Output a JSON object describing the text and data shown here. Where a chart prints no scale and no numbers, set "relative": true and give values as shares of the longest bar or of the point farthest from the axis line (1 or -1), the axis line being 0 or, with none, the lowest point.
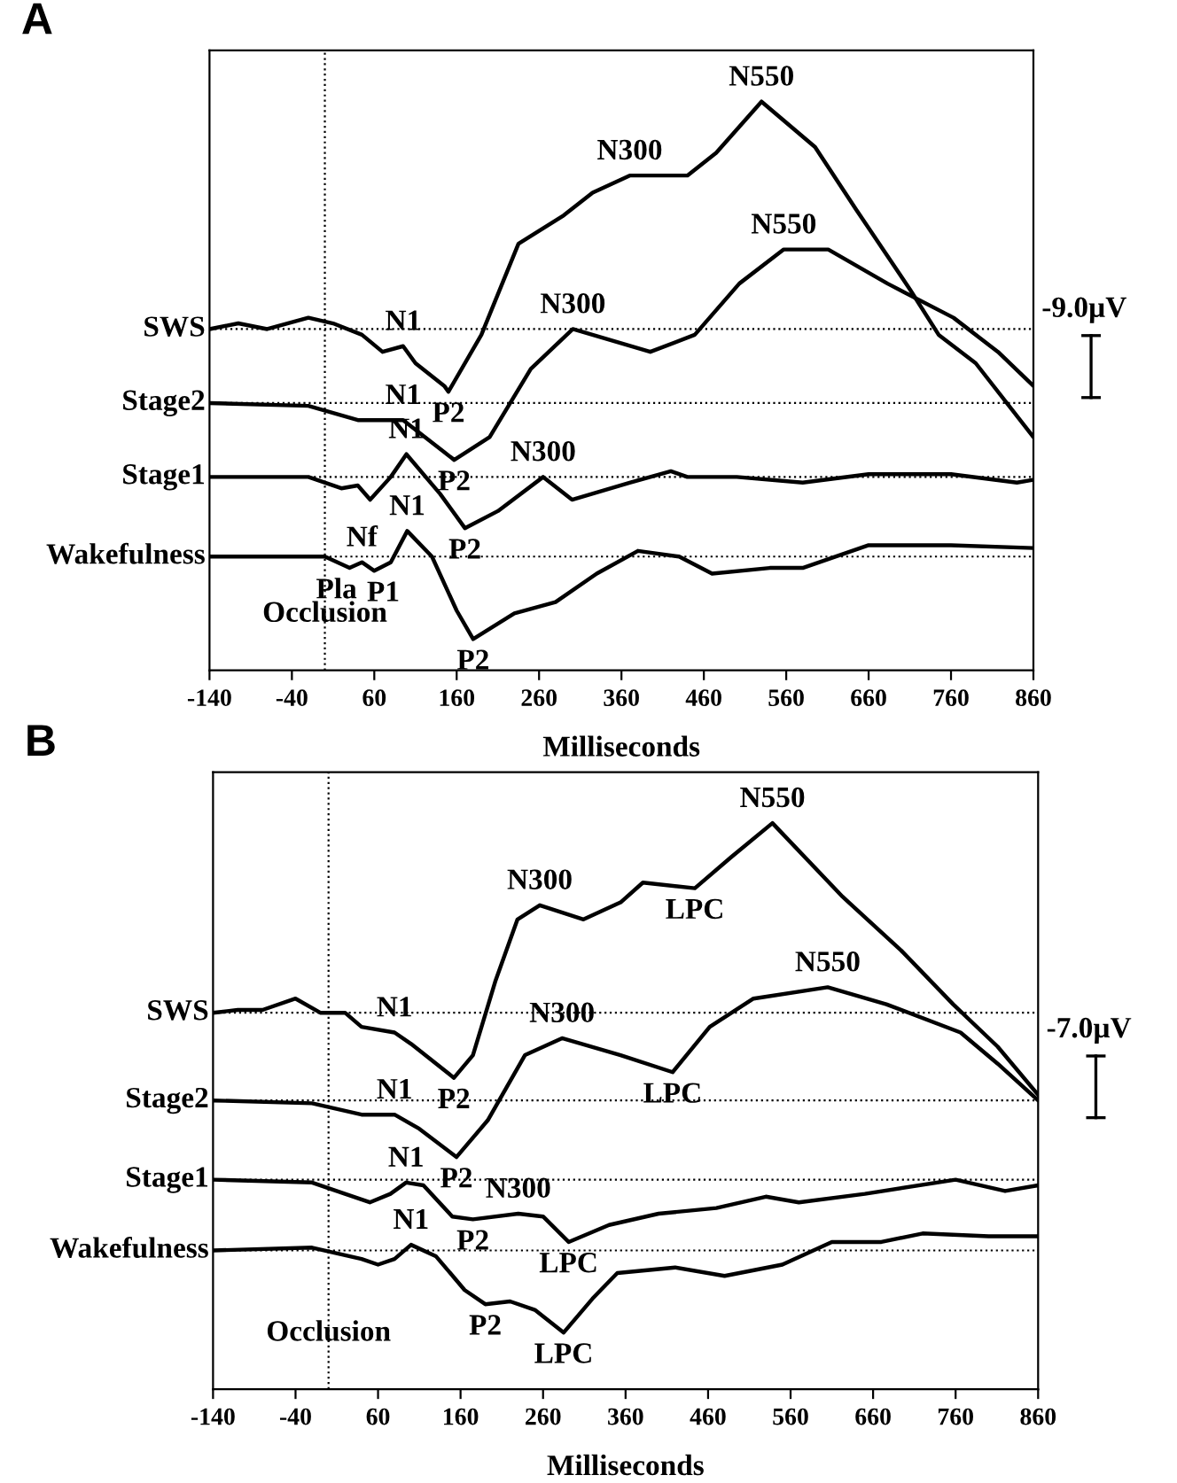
{
  "chart_data": [
    {
      "type": "line",
      "title": "A",
      "xlabel": "Milliseconds",
      "relative": true,
      "xlim": [
        -140,
        860
      ],
      "xticks": [
        -140,
        -40,
        60,
        160,
        260,
        360,
        460,
        560,
        660,
        760,
        860
      ],
      "grid": false,
      "legend": false,
      "line_style": "solid",
      "marker": "none",
      "series": [
        {
          "name": "SWS",
          "color": "#000000",
          "x": [
            -140,
            -105,
            -70,
            -20,
            10,
            45,
            70,
            95,
            110,
            145,
            150,
            190,
            235,
            290,
            325,
            370,
            440,
            475,
            530,
            595,
            645,
            710,
            745,
            790,
            860
          ],
          "values": [
            0.6,
            0.61,
            0.6,
            0.62,
            0.61,
            0.59,
            0.56,
            0.57,
            0.54,
            0.5,
            0.49,
            0.59,
            0.75,
            0.8,
            0.84,
            0.87,
            0.87,
            0.91,
            1.0,
            0.92,
            0.81,
            0.67,
            0.59,
            0.54,
            0.41
          ]
        },
        {
          "name": "Stage2",
          "color": "#000000",
          "x": [
            -140,
            -20,
            40,
            95,
            157,
            200,
            250,
            301,
            395,
            449,
            503,
            557,
            611,
            683,
            763,
            817,
            860
          ],
          "values": [
            0.47,
            0.465,
            0.44,
            0.44,
            0.37,
            0.41,
            0.53,
            0.6,
            0.56,
            0.59,
            0.68,
            0.74,
            0.74,
            0.68,
            0.62,
            0.56,
            0.5
          ]
        },
        {
          "name": "Stage1",
          "color": "#000000",
          "x": [
            -140,
            -20,
            20,
            40,
            55,
            80,
            99,
            140,
            170,
            210,
            265,
            300,
            370,
            420,
            440,
            500,
            580,
            660,
            760,
            840,
            860
          ],
          "values": [
            0.34,
            0.34,
            0.32,
            0.325,
            0.3,
            0.34,
            0.38,
            0.31,
            0.25,
            0.28,
            0.34,
            0.3,
            0.33,
            0.35,
            0.34,
            0.34,
            0.33,
            0.345,
            0.345,
            0.33,
            0.335
          ]
        },
        {
          "name": "Wakefulness",
          "color": "#000000",
          "x": [
            -140,
            0,
            30,
            45,
            60,
            80,
            100,
            130,
            160,
            180,
            230,
            280,
            330,
            380,
            430,
            470,
            540,
            580,
            660,
            760,
            860
          ],
          "values": [
            0.2,
            0.2,
            0.18,
            0.19,
            0.175,
            0.19,
            0.245,
            0.2,
            0.105,
            0.055,
            0.1,
            0.12,
            0.17,
            0.21,
            0.2,
            0.17,
            0.18,
            0.18,
            0.22,
            0.22,
            0.215
          ]
        }
      ],
      "ref_lines": [
        {
          "axis": "y",
          "value": 0.6,
          "line_style": "dotted"
        },
        {
          "axis": "y",
          "value": 0.47,
          "line_style": "dotted"
        },
        {
          "axis": "y",
          "value": 0.34,
          "line_style": "dotted"
        },
        {
          "axis": "y",
          "value": 0.2,
          "line_style": "dotted"
        },
        {
          "axis": "x",
          "value": 0,
          "line_style": "dotted"
        }
      ],
      "annotations": [
        {
          "text": "N550",
          "x": 530,
          "y": 1.0
        },
        {
          "text": "N300",
          "x": 370,
          "y": 0.87
        },
        {
          "text": "N550",
          "x": 557,
          "y": 0.74
        },
        {
          "text": "N300",
          "x": 301,
          "y": 0.6
        },
        {
          "text": "N1",
          "x": 95,
          "y": 0.57
        },
        {
          "text": "N1",
          "x": 95,
          "y": 0.44
        },
        {
          "text": "P2",
          "x": 150,
          "y": 0.49
        },
        {
          "text": "N1",
          "x": 99,
          "y": 0.38
        },
        {
          "text": "P2",
          "x": 157,
          "y": 0.37
        },
        {
          "text": "N300",
          "x": 265,
          "y": 0.34
        },
        {
          "text": "N1",
          "x": 100,
          "y": 0.245
        },
        {
          "text": "Nf",
          "x": 45,
          "y": 0.19
        },
        {
          "text": "P2",
          "x": 170,
          "y": 0.25
        },
        {
          "text": "Pla",
          "x": 30,
          "y": 0.18
        },
        {
          "text": "P1",
          "x": 60,
          "y": 0.175
        },
        {
          "text": "Occlusion",
          "x": 0
        },
        {
          "text": "P2",
          "x": 180,
          "y": 0.055
        },
        "-9.0µV"
      ]
    },
    {
      "type": "line",
      "title": "B",
      "xlabel": "Milliseconds",
      "relative": true,
      "xlim": [
        -140,
        860
      ],
      "xticks": [
        -140,
        -40,
        60,
        160,
        260,
        360,
        460,
        560,
        660,
        760,
        860
      ],
      "grid": false,
      "legend": false,
      "line_style": "solid",
      "marker": "none",
      "series": [
        {
          "name": "SWS",
          "color": "#000000",
          "x": [
            -140,
            -110,
            -80,
            -40,
            -10,
            20,
            40,
            80,
            100,
            152,
            175,
            202,
            229,
            256,
            309,
            354,
            381,
            444,
            488,
            538,
            623,
            694,
            757,
            811,
            860
          ],
          "values": [
            0.665,
            0.67,
            0.67,
            0.69,
            0.665,
            0.665,
            0.64,
            0.63,
            0.61,
            0.55,
            0.59,
            0.72,
            0.83,
            0.855,
            0.83,
            0.86,
            0.895,
            0.885,
            0.94,
            1.0,
            0.87,
            0.775,
            0.68,
            0.605,
            0.52
          ]
        },
        {
          "name": "Stage2",
          "color": "#000000",
          "x": [
            -140,
            -20,
            40,
            80,
            110,
            155,
            193,
            238,
            283,
            354,
            417,
            462,
            515,
            605,
            676,
            766,
            811,
            860
          ],
          "values": [
            0.51,
            0.505,
            0.485,
            0.485,
            0.46,
            0.41,
            0.475,
            0.59,
            0.62,
            0.59,
            0.56,
            0.64,
            0.69,
            0.71,
            0.68,
            0.63,
            0.575,
            0.51
          ]
        },
        {
          "name": "Stage1",
          "color": "#000000",
          "x": [
            -140,
            -20,
            20,
            50,
            75,
            94,
            115,
            150,
            175,
            230,
            260,
            291,
            340,
            400,
            470,
            530,
            570,
            650,
            760,
            820,
            860
          ],
          "values": [
            0.37,
            0.365,
            0.345,
            0.33,
            0.345,
            0.365,
            0.36,
            0.305,
            0.3,
            0.31,
            0.305,
            0.26,
            0.29,
            0.31,
            0.32,
            0.34,
            0.33,
            0.345,
            0.37,
            0.35,
            0.36
          ]
        },
        {
          "name": "Wakefulness",
          "color": "#000000",
          "x": [
            -140,
            -20,
            40,
            60,
            80,
            100,
            130,
            165,
            190,
            220,
            250,
            285,
            320,
            350,
            420,
            480,
            550,
            610,
            670,
            720,
            800,
            860
          ],
          "values": [
            0.245,
            0.25,
            0.23,
            0.22,
            0.23,
            0.255,
            0.235,
            0.175,
            0.15,
            0.155,
            0.14,
            0.1,
            0.16,
            0.205,
            0.215,
            0.2,
            0.22,
            0.26,
            0.26,
            0.275,
            0.27,
            0.27
          ]
        }
      ],
      "ref_lines": [
        {
          "axis": "y",
          "value": 0.665,
          "line_style": "dotted"
        },
        {
          "axis": "y",
          "value": 0.51,
          "line_style": "dotted"
        },
        {
          "axis": "y",
          "value": 0.37,
          "line_style": "dotted"
        },
        {
          "axis": "y",
          "value": 0.245,
          "line_style": "dotted"
        },
        {
          "axis": "x",
          "value": 0,
          "line_style": "dotted"
        }
      ],
      "annotations": [
        {
          "text": "N550",
          "x": 538,
          "y": 1.0
        },
        {
          "text": "N300",
          "x": 256,
          "y": 0.855
        },
        {
          "text": "LPC",
          "x": 444,
          "y": 0.885
        },
        {
          "text": "N550",
          "x": 605,
          "y": 0.71
        },
        {
          "text": "N1",
          "x": 80,
          "y": 0.63
        },
        {
          "text": "N300",
          "x": 283,
          "y": 0.62
        },
        {
          "text": "LPC",
          "x": 417,
          "y": 0.56
        },
        {
          "text": "N1",
          "x": 80,
          "y": 0.485
        },
        {
          "text": "P2",
          "x": 152,
          "y": 0.55
        },
        {
          "text": "N1",
          "x": 94,
          "y": 0.365
        },
        {
          "text": "P2",
          "x": 155,
          "y": 0.41
        },
        {
          "text": "N300",
          "x": 230,
          "y": 0.31
        },
        {
          "text": "N1",
          "x": 100,
          "y": 0.255
        },
        {
          "text": "P2",
          "x": 175,
          "y": 0.3
        },
        {
          "text": "LPC",
          "x": 291,
          "y": 0.26
        },
        {
          "text": "Occlusion",
          "x": 0
        },
        {
          "text": "P2",
          "x": 190,
          "y": 0.15
        },
        {
          "text": "LPC",
          "x": 285,
          "y": 0.1
        },
        "-7.0µV"
      ]
    }
  ]
}
